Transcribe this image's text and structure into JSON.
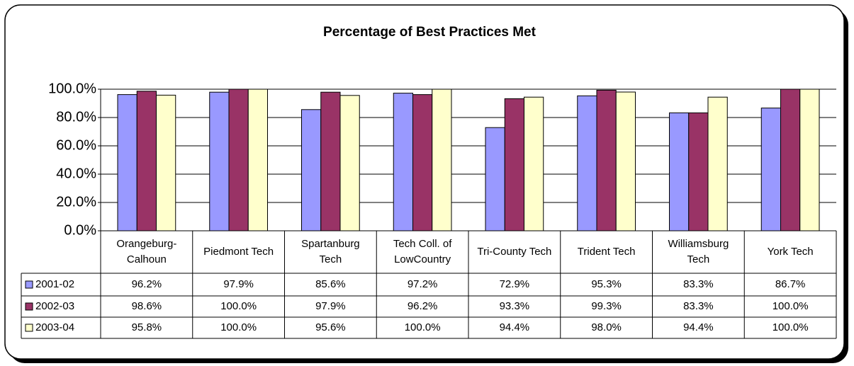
{
  "chart_data": {
    "type": "bar",
    "title": "Percentage of Best Practices Met",
    "categories": [
      "Orangeburg-Calhoun",
      "Piedmont Tech",
      "Spartanburg Tech",
      "Tech Coll. of LowCountry",
      "Tri-County Tech",
      "Trident Tech",
      "Williamsburg Tech",
      "York Tech"
    ],
    "series": [
      {
        "name": "2001-02",
        "color": "#9999ff",
        "values": [
          96.2,
          97.9,
          85.6,
          97.2,
          72.9,
          95.3,
          83.3,
          86.7
        ],
        "value_labels": [
          "96.2%",
          "97.9%",
          "85.6%",
          "97.2%",
          "72.9%",
          "95.3%",
          "83.3%",
          "86.7%"
        ]
      },
      {
        "name": "2002-03",
        "color": "#993366",
        "values": [
          98.6,
          100.0,
          97.9,
          96.2,
          93.3,
          99.3,
          83.3,
          100.0
        ],
        "value_labels": [
          "98.6%",
          "100.0%",
          "97.9%",
          "96.2%",
          "93.3%",
          "99.3%",
          "83.3%",
          "100.0%"
        ]
      },
      {
        "name": "2003-04",
        "color": "#ffffcc",
        "values": [
          95.8,
          100.0,
          95.6,
          100.0,
          94.4,
          98.0,
          94.4,
          100.0
        ],
        "value_labels": [
          "95.8%",
          "100.0%",
          "95.6%",
          "100.0%",
          "94.4%",
          "98.0%",
          "94.4%",
          "100.0%"
        ]
      }
    ],
    "ylim": [
      0,
      100
    ],
    "yticks": [
      {
        "value": 0,
        "label": "0.0%"
      },
      {
        "value": 20,
        "label": "20.0%"
      },
      {
        "value": 40,
        "label": "40.0%"
      },
      {
        "value": 60,
        "label": "60.0%"
      },
      {
        "value": 80,
        "label": "80.0%"
      },
      {
        "value": 100,
        "label": "100.0%"
      }
    ],
    "grid": true
  }
}
